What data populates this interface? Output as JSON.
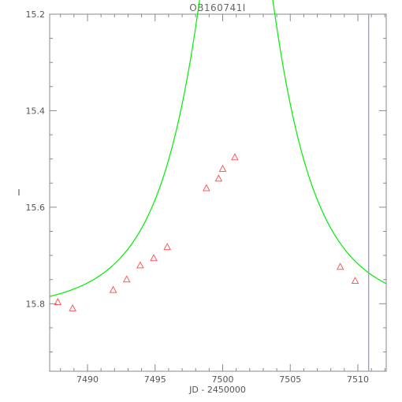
{
  "chart_data": {
    "type": "scatter",
    "title": "OB160741I",
    "xlabel": "JD - 2450000",
    "ylabel": "I",
    "xlim": [
      7487.2,
      7512.1
    ],
    "ylim": [
      15.94,
      15.2
    ],
    "y_inverted": true,
    "xticks": [
      7490,
      7495,
      7500,
      7505,
      7510
    ],
    "yticks": [
      15.2,
      15.4,
      15.6,
      15.8
    ],
    "xtick_labels": [
      "7490",
      "7495",
      "7500",
      "7505",
      "7510"
    ],
    "ytick_labels": [
      "15.2",
      "15.4",
      "15.6",
      "15.8"
    ],
    "grid": false,
    "legend": "none",
    "series": [
      {
        "marker": "triangle",
        "color": "#ff5a5a",
        "x": [
          7487.8,
          7488.9,
          7491.9,
          7492.9,
          7493.9,
          7494.9,
          7495.9,
          7498.8,
          7499.7,
          7500.0,
          7500.9,
          7508.7,
          7509.8
        ],
        "y": [
          15.797,
          15.81,
          15.772,
          15.75,
          15.721,
          15.706,
          15.683,
          15.561,
          15.541,
          15.521,
          15.497,
          15.724,
          15.753
        ]
      },
      {
        "kind": "model-curve",
        "color": "#00ee00",
        "t0": 7501.0,
        "u0": 0.32,
        "tE": 5.7,
        "baseline": 15.815,
        "blend": 0.85
      }
    ],
    "vline": {
      "x": 7510.8,
      "color": "#8f8fd8"
    },
    "colors": {
      "frame": "#8a8a8a",
      "text": "#555555"
    }
  }
}
